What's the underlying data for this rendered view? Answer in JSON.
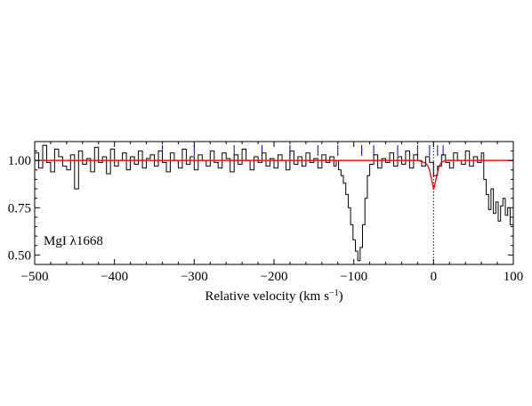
{
  "chart_data": {
    "type": "line",
    "title": "",
    "xlabel": "Relative velocity (km s",
    "xlabel_sup": "−1",
    "xlabel_close": ")",
    "ylabel": "",
    "xlim": [
      -500,
      100
    ],
    "ylim": [
      0.45,
      1.1
    ],
    "x_ticks": [
      -500,
      -400,
      -300,
      -200,
      -100,
      0,
      100
    ],
    "x_tick_labels": [
      "−500",
      "−400",
      "−300",
      "−200",
      "−100",
      "0",
      "100"
    ],
    "y_ticks": [
      0.5,
      0.75,
      1.0
    ],
    "y_tick_labels": [
      "0.50",
      "0.75",
      "1.00"
    ],
    "annotation": "MgI λ1668",
    "component_marks_kms": [
      -340,
      -300,
      -250,
      -215,
      -180,
      -145,
      -120,
      -90,
      -75,
      -45,
      -20,
      -5,
      5,
      12
    ],
    "reference_line_kms": 0,
    "series": [
      {
        "style": "histogram",
        "color": "#000000",
        "x": [
          -500,
          -495,
          -490,
          -485,
          -480,
          -475,
          -470,
          -465,
          -460,
          -455,
          -450,
          -445,
          -440,
          -435,
          -430,
          -425,
          -420,
          -415,
          -410,
          -405,
          -400,
          -395,
          -390,
          -385,
          -380,
          -375,
          -370,
          -365,
          -360,
          -355,
          -350,
          -345,
          -340,
          -335,
          -330,
          -325,
          -320,
          -315,
          -310,
          -305,
          -300,
          -295,
          -290,
          -285,
          -280,
          -275,
          -270,
          -265,
          -260,
          -255,
          -250,
          -245,
          -240,
          -235,
          -230,
          -225,
          -220,
          -215,
          -210,
          -205,
          -200,
          -195,
          -190,
          -185,
          -180,
          -175,
          -170,
          -165,
          -160,
          -155,
          -150,
          -145,
          -140,
          -135,
          -130,
          -125,
          -122,
          -119,
          -116,
          -113,
          -110,
          -107,
          -104,
          -101,
          -98,
          -95,
          -92,
          -89,
          -86,
          -83,
          -80,
          -75,
          -70,
          -65,
          -60,
          -55,
          -50,
          -45,
          -40,
          -35,
          -30,
          -25,
          -20,
          -15,
          -10,
          -5,
          0,
          5,
          10,
          15,
          20,
          25,
          30,
          35,
          40,
          45,
          50,
          55,
          60,
          63,
          66,
          69,
          72,
          75,
          78,
          81,
          84,
          87,
          90,
          93,
          96,
          100
        ],
        "y": [
          1.04,
          0.96,
          1.08,
          0.99,
          0.94,
          1.06,
          1.02,
          0.97,
          0.95,
          1.03,
          0.85,
          1.05,
          0.98,
          1.01,
          0.94,
          1.07,
          0.99,
          1.02,
          0.93,
          1.06,
          0.97,
          1.0,
          1.04,
          0.95,
          1.02,
          0.98,
          1.05,
          0.96,
          1.01,
          1.03,
          0.97,
          1.05,
          0.99,
          0.94,
          1.04,
          1.0,
          0.96,
          1.06,
          0.98,
          1.02,
          0.95,
          1.03,
          1.0,
          0.97,
          1.05,
          0.99,
          0.96,
          1.04,
          1.01,
          0.94,
          1.03,
          0.98,
          1.06,
          1.0,
          0.95,
          1.02,
          0.99,
          1.04,
          0.97,
          1.01,
          0.96,
          1.03,
          1.0,
          0.95,
          1.05,
          0.98,
          1.02,
          0.97,
          1.04,
          0.99,
          1.01,
          0.96,
          1.03,
          0.99,
          1.02,
          0.97,
          1.0,
          0.95,
          0.92,
          0.88,
          0.82,
          0.75,
          0.66,
          0.58,
          0.52,
          0.47,
          0.54,
          0.66,
          0.8,
          0.92,
          0.98,
          1.03,
          0.96,
          1.01,
          0.99,
          1.04,
          0.97,
          1.02,
          0.98,
          1.05,
          0.96,
          1.03,
          1.0,
          0.97,
          1.02,
          0.99,
          0.92,
          0.97,
          1.03,
          0.99,
          0.96,
          1.04,
          1.0,
          0.98,
          1.05,
          0.97,
          1.02,
          0.99,
          1.04,
          0.9,
          0.82,
          0.74,
          0.85,
          0.72,
          0.78,
          0.68,
          0.76,
          0.8,
          0.71,
          0.75,
          0.66,
          0.7
        ]
      },
      {
        "style": "model",
        "color": "#ff0000",
        "x": [
          -500,
          -20,
          -15,
          -10,
          -7,
          -5,
          -3,
          -1,
          0,
          1,
          3,
          5,
          7,
          10,
          15,
          100
        ],
        "y": [
          1.0,
          1.0,
          0.995,
          0.985,
          0.97,
          0.95,
          0.91,
          0.87,
          0.85,
          0.86,
          0.9,
          0.94,
          0.97,
          0.99,
          1.0,
          1.0
        ]
      }
    ]
  }
}
